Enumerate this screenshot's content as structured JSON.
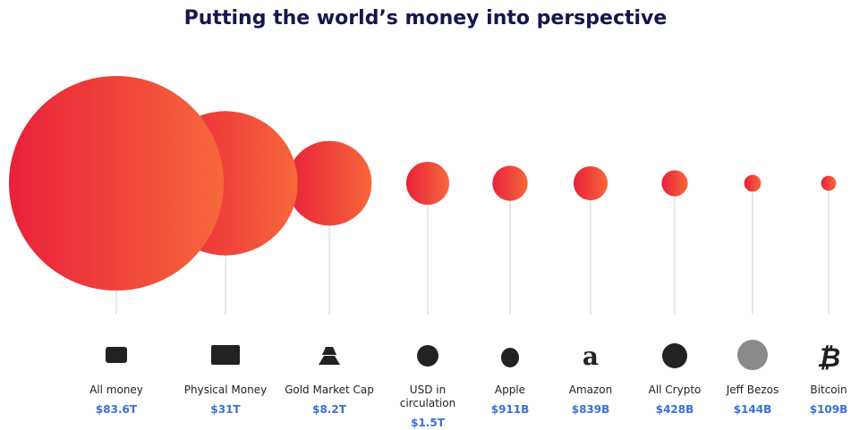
{
  "chart_data": {
    "type": "bubble",
    "title": "Putting the world’s money into perspective",
    "categories": [
      "All money",
      "Physical Money",
      "Gold Market Cap",
      "USD in circulation",
      "Apple",
      "Amazon",
      "All Crypto",
      "Jeff Bezos",
      "Bitcoin"
    ],
    "values": [
      83600,
      31000,
      8200,
      1500,
      911,
      839,
      428,
      144,
      109
    ],
    "value_labels": [
      "$83.6T",
      "$31T",
      "$8.2T",
      "$1.5T",
      "$911B",
      "$839B",
      "$428B",
      "$144B",
      "$109B"
    ],
    "colors": [
      "#e8213a",
      "#f7673b"
    ]
  }
}
